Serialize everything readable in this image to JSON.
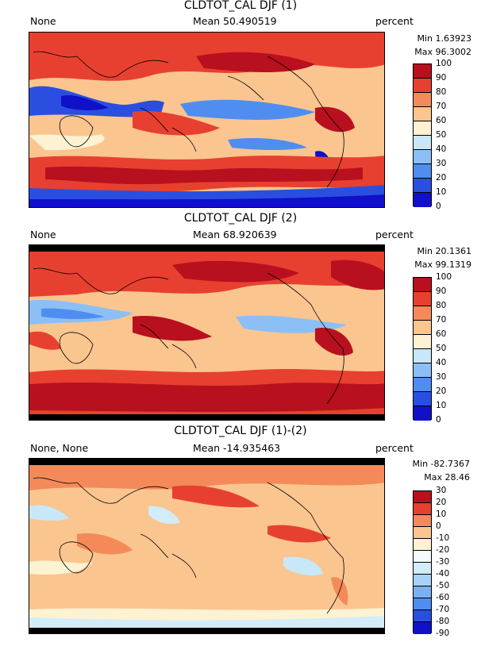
{
  "chart_data": [
    {
      "type": "heatmap",
      "title": "CLDTOT_CAL DJF (1)",
      "left_label": "None",
      "mean_label": "Mean 50.490519",
      "units": "percent",
      "min_label": "Min 1.63923",
      "max_label": "Max 96.3002",
      "colorbar_ticks": [
        "0",
        "10",
        "20",
        "30",
        "40",
        "50",
        "60",
        "70",
        "80",
        "90",
        "100"
      ],
      "colors": [
        "#1010c8",
        "#2a4fe0",
        "#4f8ef0",
        "#8cc0f5",
        "#c8e8fa",
        "#fdf2d2",
        "#fbc590",
        "#f48a5a",
        "#e84030",
        "#b8101e"
      ]
    },
    {
      "type": "heatmap",
      "title": "CLDTOT_CAL DJF (2)",
      "left_label": "None",
      "mean_label": "Mean 68.920639",
      "units": "percent",
      "min_label": "Min 20.1361",
      "max_label": "Max 99.1319",
      "colorbar_ticks": [
        "0",
        "10",
        "20",
        "30",
        "40",
        "50",
        "60",
        "70",
        "80",
        "90",
        "100"
      ],
      "colors": [
        "#1010c8",
        "#2a4fe0",
        "#4f8ef0",
        "#8cc0f5",
        "#c8e8fa",
        "#fdf2d2",
        "#fbc590",
        "#f48a5a",
        "#e84030",
        "#b8101e"
      ]
    },
    {
      "type": "heatmap",
      "title": "CLDTOT_CAL DJF (1)-(2)",
      "left_label": "None, None",
      "mean_label": "Mean -14.935463",
      "units": "percent",
      "min_label": "Min -82.7367",
      "max_label": "Max 28.46",
      "colorbar_ticks": [
        "-90",
        "-80",
        "-70",
        "-60",
        "-50",
        "-40",
        "-30",
        "-20",
        "-10",
        "0",
        "10",
        "20",
        "30"
      ],
      "colors": [
        "#1010c8",
        "#2a4fe0",
        "#4f8ef0",
        "#7ab0f2",
        "#a8d2f7",
        "#d2ecfa",
        "#f2fbfd",
        "#fdf2d2",
        "#fbc590",
        "#f48a5a",
        "#e84030",
        "#b8101e"
      ]
    }
  ]
}
